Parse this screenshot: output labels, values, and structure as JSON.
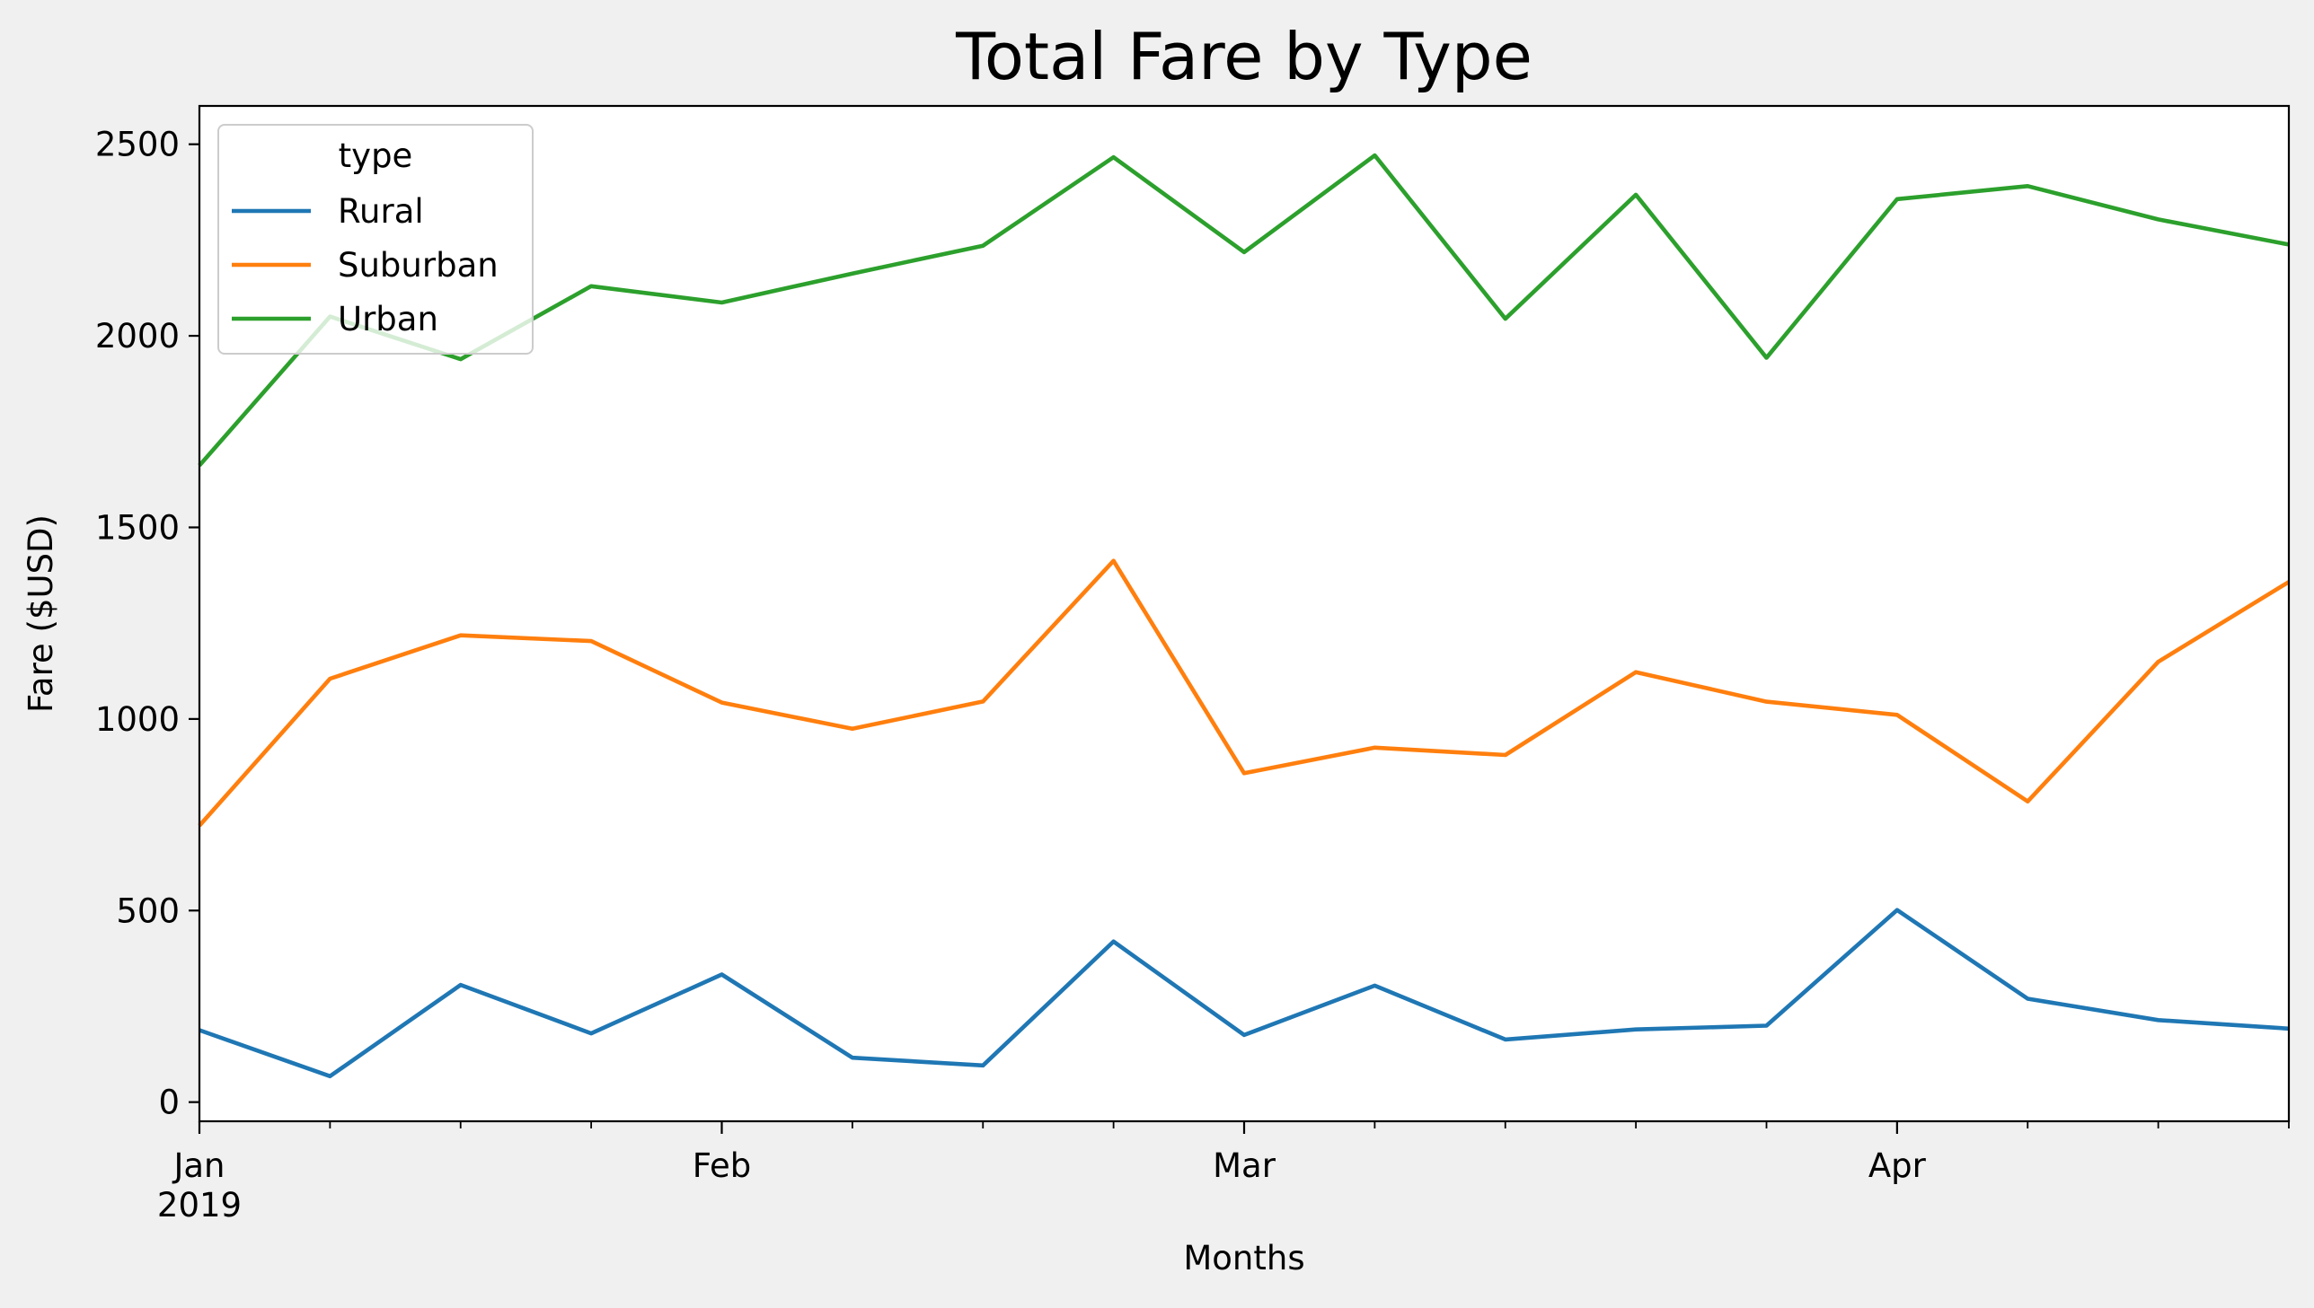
{
  "chart_data": {
    "type": "line",
    "title": "Total Fare by Type",
    "xlabel": "Months",
    "ylabel": "Fare ($USD)",
    "x": [
      "2019-01-06",
      "2019-01-13",
      "2019-01-20",
      "2019-01-27",
      "2019-02-03",
      "2019-02-10",
      "2019-02-17",
      "2019-02-24",
      "2019-03-03",
      "2019-03-10",
      "2019-03-17",
      "2019-03-24",
      "2019-03-31",
      "2019-04-07",
      "2019-04-14",
      "2019-04-21",
      "2019-04-28"
    ],
    "xlim": [
      "2019-01-06",
      "2019-04-28"
    ],
    "xticks_major": [
      {
        "date": "2019-01-06",
        "label": "Jan",
        "sublabel": "2019"
      },
      {
        "date": "2019-02-03",
        "label": "Feb",
        "sublabel": ""
      },
      {
        "date": "2019-03-03",
        "label": "Mar",
        "sublabel": ""
      },
      {
        "date": "2019-04-07",
        "label": "Apr",
        "sublabel": ""
      }
    ],
    "ylim": [
      -50,
      2600
    ],
    "yticks": [
      0,
      500,
      1000,
      1500,
      2000,
      2500
    ],
    "legend": {
      "title": "type",
      "position": "top-left"
    },
    "grid": false,
    "series": [
      {
        "name": "Rural",
        "color": "#1f77b4",
        "values": [
          187.92,
          67.65,
          306.0,
          179.42,
          333.08,
          115.8,
          95.82,
          419.06,
          175.14,
          303.94,
          163.39,
          189.76,
          199.42,
          501.24,
          269.79,
          214.14,
          191.85
        ]
      },
      {
        "name": "Suburban",
        "color": "#ff7f0e",
        "values": [
          721.6,
          1105.13,
          1218.2,
          1203.28,
          1042.79,
          974.34,
          1045.5,
          1412.74,
          858.46,
          925.27,
          905.87,
          1122.2,
          1045.06,
          1010.73,
          784.82,
          1149.27,
          1357.75
        ]
      },
      {
        "name": "Urban",
        "color": "#2ca02c",
        "values": [
          1661.68,
          2050.43,
          1939.02,
          2129.51,
          2086.94,
          2162.64,
          2235.07,
          2466.29,
          2218.2,
          2470.93,
          2044.42,
          2368.37,
          1942.77,
          2356.7,
          2390.72,
          2303.8,
          2238.29
        ]
      }
    ]
  }
}
